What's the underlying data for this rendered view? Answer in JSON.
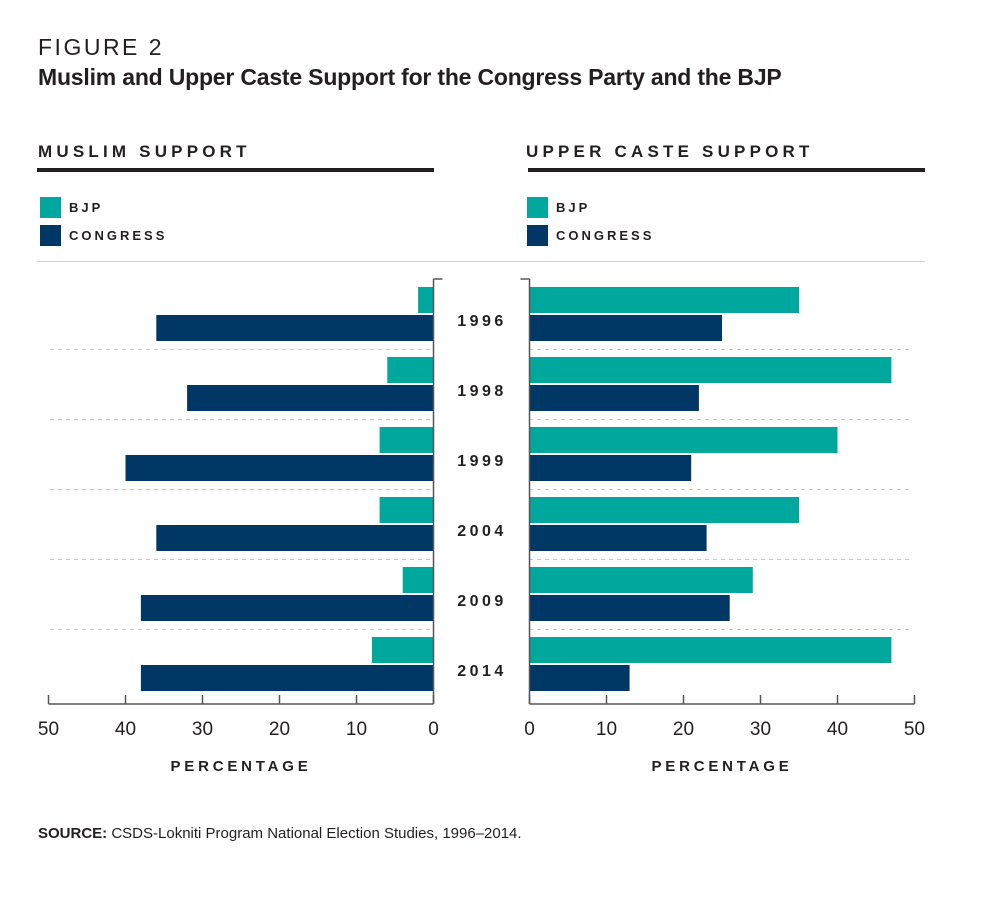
{
  "figure_label": "FIGURE 2",
  "title": "Muslim and Upper Caste Support for the Congress Party and the BJP",
  "colors": {
    "bjp": "#00a79d",
    "congress": "#003764",
    "text": "#231f20",
    "axis": "#555555",
    "grid": "#c8c8c8"
  },
  "legend": [
    {
      "label": "BJP",
      "color_key": "bjp"
    },
    {
      "label": "CONGRESS",
      "color_key": "congress"
    }
  ],
  "source": {
    "label": "SOURCE:",
    "text": " CSDS-Lokniti Program National Election Studies, 1996–2014."
  },
  "chart_data": [
    {
      "type": "bar",
      "orientation": "horizontal",
      "direction": "right-to-left",
      "title": "MUSLIM SUPPORT",
      "categories": [
        "1996",
        "1998",
        "1999",
        "2004",
        "2009",
        "2014"
      ],
      "series": [
        {
          "name": "BJP",
          "values": [
            2,
            6,
            7,
            7,
            4,
            8
          ]
        },
        {
          "name": "CONGRESS",
          "values": [
            36,
            32,
            40,
            36,
            38,
            38
          ]
        }
      ],
      "xlabel": "PERCENTAGE",
      "xlim": [
        0,
        50
      ],
      "xticks": [
        50,
        40,
        30,
        20,
        10,
        0
      ],
      "legend_placement": "top-left",
      "grid": "dashed row separators"
    },
    {
      "type": "bar",
      "orientation": "horizontal",
      "direction": "left-to-right",
      "title": "UPPER CASTE SUPPORT",
      "categories": [
        "1996",
        "1998",
        "1999",
        "2004",
        "2009",
        "2014"
      ],
      "series": [
        {
          "name": "BJP",
          "values": [
            35,
            47,
            40,
            35,
            29,
            47
          ]
        },
        {
          "name": "CONGRESS",
          "values": [
            25,
            22,
            21,
            23,
            26,
            13
          ]
        }
      ],
      "xlabel": "PERCENTAGE",
      "xlim": [
        0,
        50
      ],
      "xticks": [
        0,
        10,
        20,
        30,
        40,
        50
      ],
      "legend_placement": "top-left",
      "grid": "dashed row separators"
    }
  ]
}
